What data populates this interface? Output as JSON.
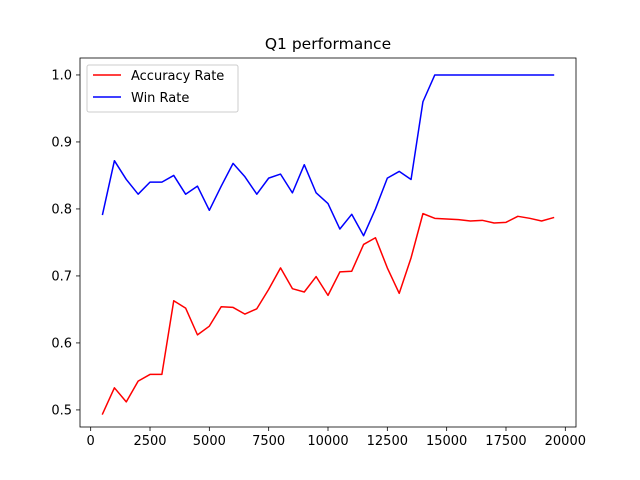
{
  "chart_data": {
    "type": "line",
    "title": "Q1 performance",
    "xlabel": "",
    "ylabel": "",
    "xlim": [
      -450,
      20450
    ],
    "ylim": [
      0.4745,
      1.0253
    ],
    "xticks": [
      0,
      2500,
      5000,
      7500,
      10000,
      12500,
      15000,
      17500,
      20000
    ],
    "yticks": [
      0.5,
      0.6,
      0.7,
      0.8,
      0.9,
      1.0
    ],
    "ytick_labels": [
      "0.5",
      "0.6",
      "0.7",
      "0.8",
      "0.9",
      "1.0"
    ],
    "grid": false,
    "legend_position": "upper-left",
    "x": [
      500,
      1000,
      1500,
      2000,
      2500,
      3000,
      3500,
      4000,
      4500,
      5000,
      5500,
      6000,
      6500,
      7000,
      7500,
      8000,
      8500,
      9000,
      9500,
      10000,
      10500,
      11000,
      11500,
      12000,
      12500,
      13000,
      13500,
      14000,
      14500,
      15000,
      15500,
      16000,
      16500,
      17000,
      17500,
      18000,
      18500,
      19000,
      19500
    ],
    "series": [
      {
        "name": "Accuracy Rate",
        "color": "#ff0000",
        "values": [
          0.494,
          0.533,
          0.512,
          0.543,
          0.553,
          0.553,
          0.663,
          0.652,
          0.612,
          0.625,
          0.654,
          0.653,
          0.643,
          0.651,
          0.68,
          0.712,
          0.681,
          0.676,
          0.699,
          0.671,
          0.706,
          0.707,
          0.747,
          0.757,
          0.712,
          0.674,
          0.727,
          0.793,
          0.786,
          0.785,
          0.784,
          0.782,
          0.783,
          0.779,
          0.78,
          0.789,
          0.786,
          0.782,
          0.787
        ]
      },
      {
        "name": "Win Rate",
        "color": "#0000ff",
        "values": [
          0.792,
          0.872,
          0.844,
          0.822,
          0.84,
          0.84,
          0.85,
          0.822,
          0.834,
          0.798,
          0.834,
          0.868,
          0.848,
          0.822,
          0.846,
          0.852,
          0.824,
          0.866,
          0.824,
          0.808,
          0.77,
          0.792,
          0.76,
          0.8,
          0.846,
          0.856,
          0.844,
          0.96,
          1.0,
          1.0,
          1.0,
          1.0,
          1.0,
          1.0,
          1.0,
          1.0,
          1.0,
          1.0,
          1.0
        ]
      }
    ]
  }
}
